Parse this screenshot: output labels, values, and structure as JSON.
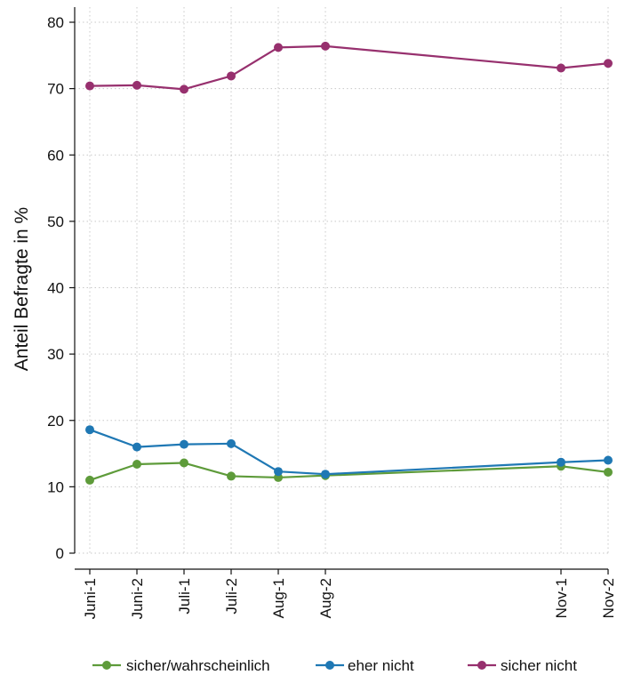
{
  "chart_data": {
    "type": "line",
    "title": "",
    "xlabel": "",
    "ylabel": "Anteil Befragte in %",
    "x": [
      1,
      2,
      3,
      4,
      5,
      6,
      11,
      12
    ],
    "categories": [
      "Juni-1",
      "Juni-2",
      "Juli-1",
      "Juli-2",
      "Aug-1",
      "Aug-2",
      "Nov-1",
      "Nov-2"
    ],
    "ylim": [
      0,
      80
    ],
    "yticks": [
      0,
      10,
      20,
      30,
      40,
      50,
      60,
      70,
      80
    ],
    "grid": true,
    "legend_position": "bottom",
    "series": [
      {
        "name": "sicher/wahrscheinlich",
        "color": "#5e9b3a",
        "values": [
          11.0,
          13.4,
          13.6,
          11.6,
          11.4,
          11.7,
          13.1,
          12.2
        ]
      },
      {
        "name": "eher nicht",
        "color": "#1f78b4",
        "values": [
          18.6,
          16.0,
          16.4,
          16.5,
          12.3,
          11.9,
          13.7,
          14.0
        ]
      },
      {
        "name": "sicher nicht",
        "color": "#97306e",
        "values": [
          70.4,
          70.5,
          69.9,
          71.9,
          76.2,
          76.4,
          73.1,
          73.8
        ]
      }
    ]
  }
}
